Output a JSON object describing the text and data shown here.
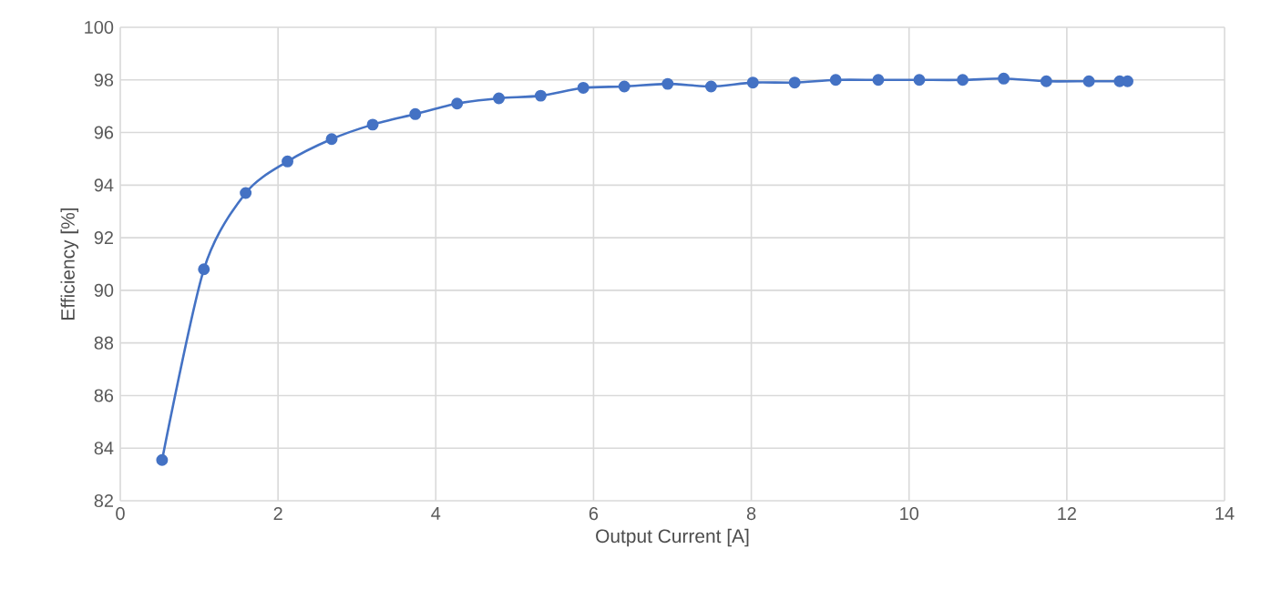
{
  "chart_data": {
    "type": "line",
    "xlabel": "Output Current [A]",
    "ylabel": "Efficiency [%]",
    "series": [
      {
        "color": "#4472c4",
        "x": [
          0.53,
          1.06,
          1.59,
          2.12,
          2.68,
          3.2,
          3.74,
          4.27,
          4.8,
          5.33,
          5.87,
          6.39,
          6.94,
          7.49,
          8.02,
          8.55,
          9.07,
          9.61,
          10.13,
          10.68,
          11.2,
          11.74,
          12.28,
          12.67,
          12.77
        ],
        "values": [
          83.55,
          90.8,
          93.7,
          94.9,
          95.75,
          96.3,
          96.7,
          97.1,
          97.3,
          97.4,
          97.7,
          97.75,
          97.85,
          97.75,
          97.9,
          97.9,
          98.0,
          98.0,
          98.0,
          98.0,
          98.05,
          97.95,
          97.95,
          97.95,
          97.95
        ]
      }
    ],
    "xlim": [
      0,
      14
    ],
    "xticks": [
      0,
      2,
      4,
      6,
      8,
      10,
      12,
      14
    ],
    "ylim": [
      82,
      100
    ],
    "yticks": [
      82,
      84,
      86,
      88,
      90,
      92,
      94,
      96,
      98,
      100
    ],
    "grid": true,
    "marker": "circle",
    "line_style": "solid"
  }
}
